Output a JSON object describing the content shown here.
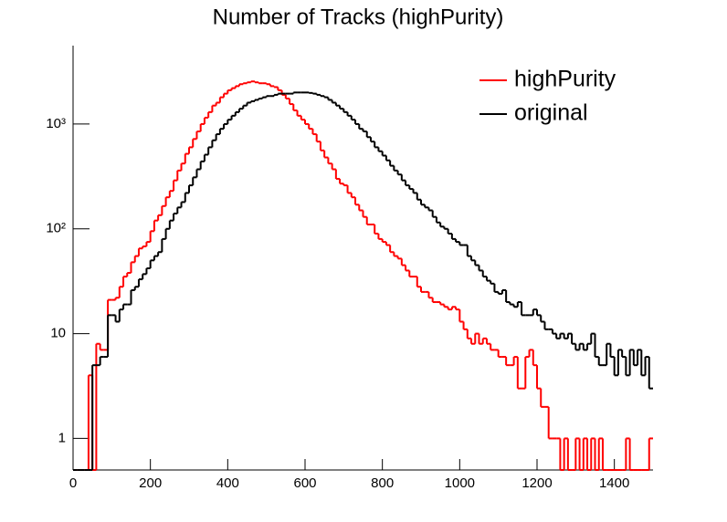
{
  "chart_data": {
    "type": "histogram",
    "title": "Number of Tracks (highPurity)",
    "bins": [
      0,
      10,
      20,
      30,
      40,
      50,
      60,
      70,
      80,
      90,
      100,
      110,
      120,
      130,
      140,
      150,
      160,
      170,
      180,
      190,
      200,
      210,
      220,
      230,
      240,
      250,
      260,
      270,
      280,
      290,
      300,
      310,
      320,
      330,
      340,
      350,
      360,
      370,
      380,
      390,
      400,
      410,
      420,
      430,
      440,
      450,
      460,
      470,
      480,
      490,
      500,
      510,
      520,
      530,
      540,
      550,
      560,
      570,
      580,
      590,
      600,
      610,
      620,
      630,
      640,
      650,
      660,
      670,
      680,
      690,
      700,
      710,
      720,
      730,
      740,
      750,
      760,
      770,
      780,
      790,
      800,
      810,
      820,
      830,
      840,
      850,
      860,
      870,
      880,
      890,
      900,
      910,
      920,
      930,
      940,
      950,
      960,
      970,
      980,
      990,
      1000,
      1010,
      1020,
      1030,
      1040,
      1050,
      1060,
      1070,
      1080,
      1090,
      1100,
      1110,
      1120,
      1130,
      1140,
      1150,
      1160,
      1170,
      1180,
      1190,
      1200,
      1210,
      1220,
      1230,
      1240,
      1250,
      1260,
      1270,
      1280,
      1290,
      1300,
      1310,
      1320,
      1330,
      1340,
      1350,
      1360,
      1370,
      1380,
      1390,
      1400,
      1410,
      1420,
      1430,
      1440,
      1450,
      1460,
      1470,
      1480,
      1490,
      1500
    ],
    "series": [
      {
        "name": "highPurity",
        "color": "#ff0000",
        "values": [
          0,
          0,
          0,
          0,
          4,
          0,
          8,
          7,
          7,
          21,
          21,
          22,
          28,
          35,
          38,
          48,
          55,
          65,
          68,
          75,
          95,
          120,
          135,
          165,
          200,
          230,
          290,
          360,
          420,
          520,
          600,
          720,
          850,
          1000,
          1150,
          1300,
          1500,
          1600,
          1800,
          1950,
          2100,
          2200,
          2300,
          2400,
          2450,
          2500,
          2550,
          2500,
          2450,
          2450,
          2400,
          2300,
          2250,
          2100,
          1900,
          1750,
          1550,
          1350,
          1200,
          1100,
          1000,
          900,
          800,
          680,
          560,
          480,
          420,
          370,
          300,
          270,
          260,
          220,
          200,
          170,
          150,
          130,
          110,
          110,
          90,
          80,
          75,
          70,
          60,
          55,
          52,
          45,
          40,
          35,
          35,
          28,
          25,
          25,
          22,
          20,
          20,
          19,
          18,
          17,
          18,
          17,
          13,
          11,
          9,
          8,
          10,
          8,
          9,
          8,
          7,
          7,
          6,
          6,
          5,
          5,
          6,
          3,
          3,
          6,
          7,
          5,
          3,
          2,
          2,
          1,
          1,
          1,
          0,
          1,
          0,
          0,
          1,
          0,
          1,
          0,
          1,
          0,
          1,
          0,
          0,
          0,
          0,
          0,
          0,
          1,
          0,
          0,
          0,
          0,
          0,
          1
        ]
      },
      {
        "name": "original",
        "color": "#000000",
        "values": [
          0,
          0,
          0,
          0,
          0,
          5,
          5,
          6,
          6,
          15,
          15,
          13,
          17,
          19,
          19,
          26,
          28,
          33,
          37,
          42,
          50,
          55,
          60,
          80,
          100,
          120,
          140,
          160,
          180,
          220,
          260,
          310,
          370,
          440,
          510,
          600,
          700,
          800,
          900,
          1000,
          1100,
          1200,
          1300,
          1400,
          1500,
          1600,
          1650,
          1700,
          1750,
          1800,
          1850,
          1850,
          1900,
          1950,
          1950,
          1950,
          1950,
          2000,
          2000,
          2000,
          2000,
          1980,
          1950,
          1900,
          1850,
          1800,
          1700,
          1600,
          1500,
          1400,
          1300,
          1200,
          1100,
          1000,
          900,
          850,
          750,
          680,
          600,
          550,
          500,
          450,
          400,
          360,
          330,
          290,
          260,
          240,
          220,
          190,
          170,
          160,
          150,
          130,
          115,
          105,
          100,
          90,
          80,
          75,
          70,
          70,
          55,
          50,
          45,
          40,
          35,
          32,
          30,
          25,
          24,
          26,
          20,
          19,
          18,
          20,
          15,
          15,
          15,
          17,
          15,
          13,
          11,
          11,
          10,
          9,
          10,
          9,
          10,
          8,
          7,
          8,
          7,
          8,
          10,
          6,
          5,
          5,
          8,
          6,
          4,
          7,
          6,
          4,
          7,
          5,
          7,
          4,
          6,
          3
        ]
      }
    ],
    "xlim": [
      0,
      1500
    ],
    "xticks": [
      0,
      200,
      400,
      600,
      800,
      1000,
      1200,
      1400
    ],
    "ylim": [
      0.5,
      5600
    ],
    "log_y": true,
    "yticks": [
      1,
      10,
      {
        "value": 100,
        "label": "10²"
      },
      {
        "value": 1000,
        "label": "10³"
      }
    ],
    "legend": "top-right"
  }
}
